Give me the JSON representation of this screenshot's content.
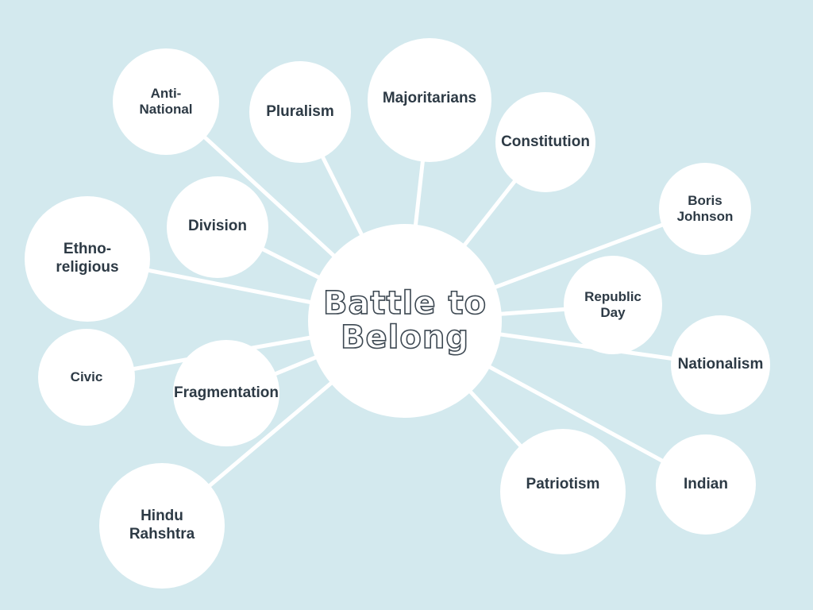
{
  "center": {
    "label": "Battle to\nBelong"
  },
  "nodes": {
    "anti_national": "Anti-\nNational",
    "pluralism": "Pluralism",
    "majoritarians": "Majoritarians",
    "constitution": "Constitution",
    "boris_johnson": "Boris\nJohnson",
    "republic_day": "Republic\nDay",
    "nationalism": "Nationalism",
    "indian": "Indian",
    "patriotism": "Patriotism",
    "hindu_rahshtra": "Hindu\nRahshtra",
    "fragmentation": "Fragmentation",
    "civic": "Civic",
    "ethno_religious": "Ethno-\nreligious",
    "division": "Division"
  },
  "colors": {
    "background": "#d3e9ee",
    "node_fill": "#ffffff",
    "link": "#ffffff",
    "text": "#2d3a45"
  }
}
